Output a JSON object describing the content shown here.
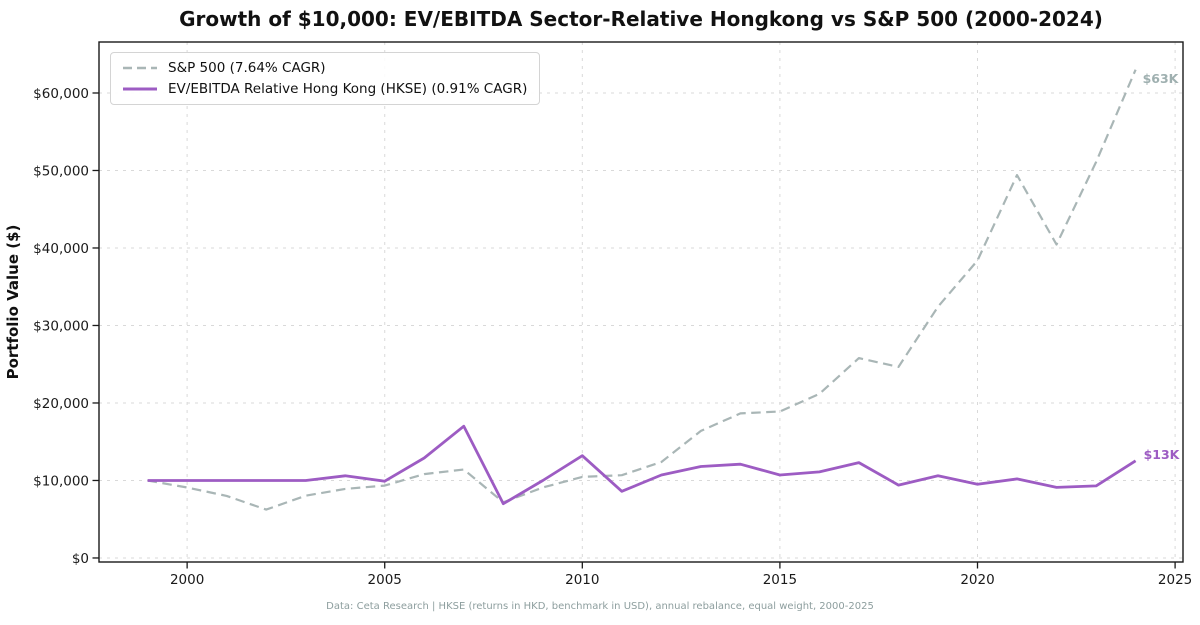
{
  "title": "Growth of $10,000: EV/EBITDA Sector-Relative Hongkong vs S&P 500 (2000-2024)",
  "axes": {
    "ylabel": "Portfolio Value ($)"
  },
  "caption": "Data: Ceta Research | HKSE (returns in HKD, benchmark in USD), annual rebalance, equal weight, 2000-2025",
  "colors": {
    "spine": "#1a1a1a",
    "grid": "#d9d9d9",
    "tick_text": "#1a1a1a",
    "sp500": "#a9b6b6",
    "hkse": "#9d5cc3",
    "sp500_annotation": "#9fb0b0",
    "hkse_annotation": "#9d5cc3"
  },
  "chart_data": {
    "type": "line",
    "title": "Growth of $10,000: EV/EBITDA Sector-Relative Hongkong vs S&P 500 (2000-2024)",
    "xlabel": "",
    "ylabel": "Portfolio Value ($)",
    "xlim": [
      1997.77,
      2025.2
    ],
    "ylim": [
      -520,
      66580
    ],
    "grid": true,
    "legend_position": "upper-left",
    "x": [
      1999,
      2000,
      2001,
      2002,
      2003,
      2004,
      2005,
      2006,
      2007,
      2008,
      2009,
      2010,
      2011,
      2012,
      2013,
      2014,
      2015,
      2016,
      2017,
      2018,
      2019,
      2020,
      2021,
      2022,
      2023,
      2024
    ],
    "xticks": [
      2000,
      2005,
      2010,
      2015,
      2020,
      2025
    ],
    "yticks": [
      0,
      10000,
      20000,
      30000,
      40000,
      50000,
      60000
    ],
    "ytick_labels": [
      "$0",
      "$10,000",
      "$20,000",
      "$30,000",
      "$40,000",
      "$50,000",
      "$60,000"
    ],
    "series": [
      {
        "key": "sp500",
        "name": "S&P 500 (7.64% CAGR)",
        "style": "dashed",
        "color": "#a9b6b6",
        "end_label": "$63K",
        "values": [
          10000,
          9090,
          8010,
          6240,
          8030,
          8910,
          9340,
          10820,
          11410,
          7190,
          9090,
          10460,
          10680,
          12390,
          16400,
          18650,
          18900,
          21170,
          25790,
          24660,
          32420,
          38390,
          49400,
          40450,
          51090,
          63000
        ]
      },
      {
        "key": "hkse",
        "name": "EV/EBITDA Relative Hong Kong (HKSE) (0.91% CAGR)",
        "style": "solid",
        "color": "#9d5cc3",
        "end_label": "$13K",
        "values": [
          10000,
          10000,
          10000,
          10000,
          10000,
          10600,
          9900,
          12900,
          17000,
          7000,
          10000,
          13200,
          8600,
          10700,
          11800,
          12100,
          10700,
          11100,
          12300,
          9400,
          10600,
          9500,
          10200,
          9100,
          9300,
          12540
        ]
      }
    ]
  }
}
